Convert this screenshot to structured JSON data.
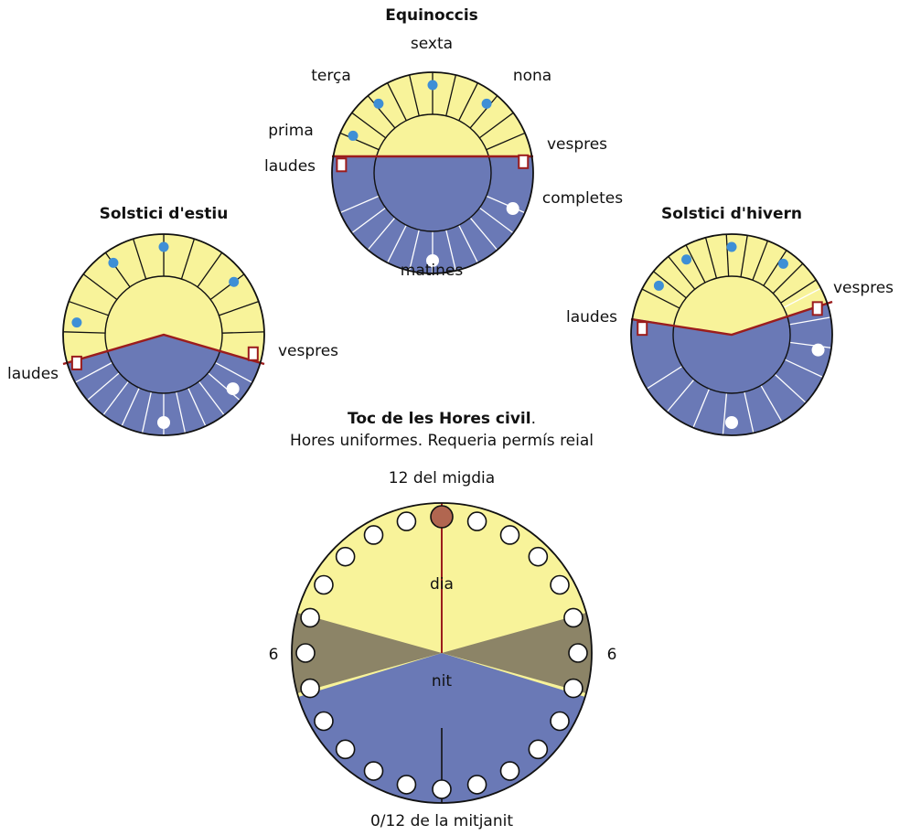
{
  "diagram": {
    "equinox": {
      "title": "Equinoccis",
      "labels": {
        "sexta": "sexta",
        "terca": "terça",
        "nona": "nona",
        "prima": "prima",
        "vespres": "vespres",
        "laudes": "laudes",
        "completes": "completes",
        "matines": "matines"
      }
    },
    "summer": {
      "title": "Solstici d'estiu",
      "labels": {
        "laudes": "laudes",
        "vespres": "vespres"
      }
    },
    "winter": {
      "title": "Solstici d'hivern",
      "labels": {
        "laudes": "laudes",
        "vespres": "vespres"
      }
    },
    "civil": {
      "title": "Toc de les Hores civil",
      "title_suffix": ".",
      "subtitle": "Hores uniformes. Requeria permís reial",
      "top_label": "12 del migdia",
      "bottom_label": "0/12 de la mitjanit",
      "left_label": "6",
      "right_label": "6",
      "day_label": "dia",
      "night_label": "nit"
    }
  },
  "colors": {
    "day": "#f8f39a",
    "night": "#6a79b6",
    "twilight": "#8c8467",
    "hour_marker_blue": "#3e8fd6",
    "canonical_marker_red": "#9b1c1c",
    "noon_marker": "#b16650",
    "horizon_line": "#9b1c1c",
    "outline": "#111111"
  }
}
